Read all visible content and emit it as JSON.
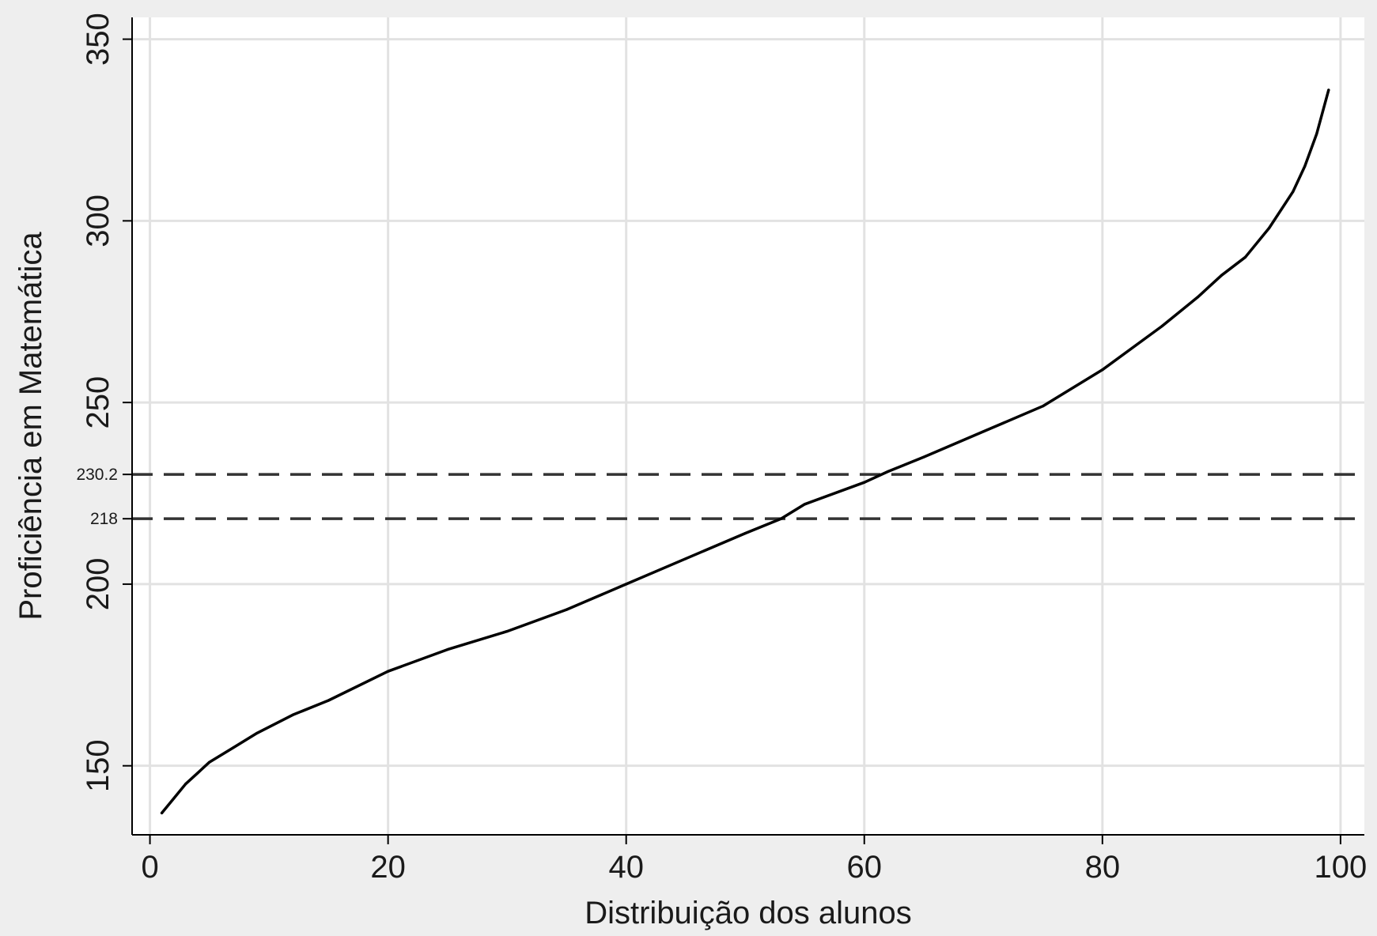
{
  "chart_data": {
    "type": "line",
    "title": "",
    "xlabel": "Distribuição dos alunos",
    "ylabel": "Proficiência em Matemática",
    "xlim": [
      -1.5,
      102
    ],
    "ylim": [
      131,
      356
    ],
    "x_ticks": [
      0,
      20,
      40,
      60,
      80,
      100
    ],
    "y_ticks": [
      150,
      200,
      250,
      300,
      350
    ],
    "grid": true,
    "legend": "none",
    "colors": {
      "background": "#eeeeee",
      "plot_area": "#ffffff",
      "grid": "#e2e2e2",
      "line": "#000000",
      "reference_line": "#333333"
    },
    "reference_lines": [
      {
        "y": 230.2,
        "label": "230.2",
        "style": "dashed"
      },
      {
        "y": 218,
        "label": "218",
        "style": "dashed"
      }
    ],
    "series": [
      {
        "x": [
          1,
          2,
          3,
          4,
          5,
          7,
          9,
          12,
          15,
          20,
          25,
          30,
          35,
          40,
          45,
          50,
          53,
          55,
          60,
          62,
          65,
          70,
          75,
          80,
          85,
          88,
          90,
          92,
          94,
          96,
          97,
          98,
          99
        ],
        "y": [
          137,
          141,
          145,
          148,
          151,
          155,
          159,
          164,
          168,
          176,
          182,
          187,
          193,
          200,
          207,
          214,
          218,
          222,
          228,
          231,
          235,
          242,
          249,
          259,
          271,
          279,
          285,
          290,
          298,
          308,
          315,
          324,
          336
        ]
      }
    ]
  }
}
